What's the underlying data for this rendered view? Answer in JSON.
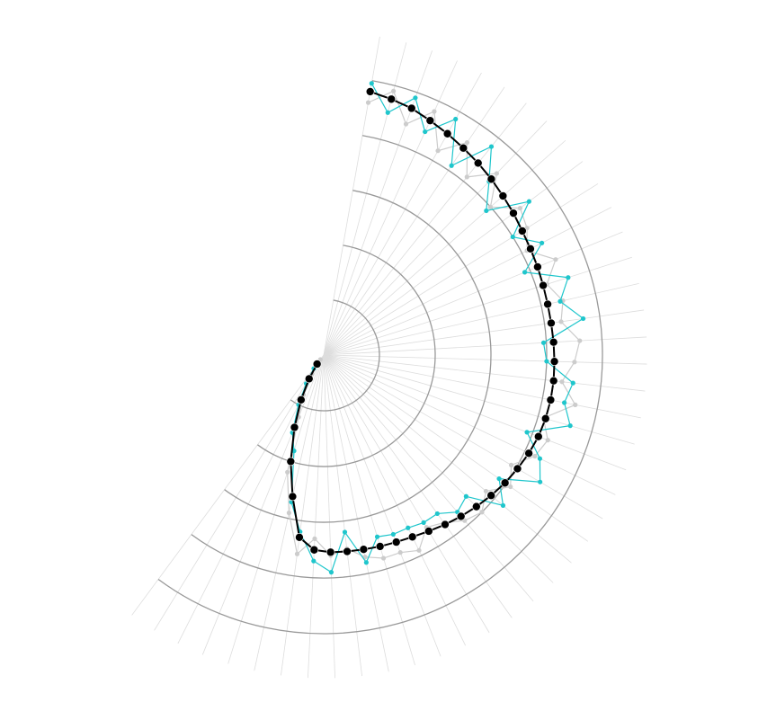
{
  "chart_data": {
    "type": "polar-line",
    "x": [
      10,
      14.8,
      19.6,
      24.4,
      29.2,
      34,
      38.8,
      43.6,
      48.4,
      53.2,
      58,
      62.8,
      67.6,
      72.4,
      77.2,
      82,
      86.8,
      91.6,
      96.4,
      101.2,
      106,
      110.8,
      115.6,
      120.4,
      125.2,
      130,
      134.8,
      139.6,
      144.4,
      149.2,
      154,
      158.8,
      163.6,
      168.4,
      173.2,
      178,
      182.8,
      187.6,
      192.4,
      197.2,
      202,
      206.8,
      211.6,
      216.4
    ],
    "rlim": [
      0,
      5
    ],
    "rticks": [
      1,
      2,
      3,
      4,
      5
    ],
    "grid": true,
    "series": [
      {
        "color": "#cccccc",
        "values": [
          4.6,
          4.9,
          4.4,
          4.8,
          4.2,
          4.6,
          4.1,
          4.5,
          4.0,
          4.4,
          4.3,
          4.1,
          4.5,
          4.2,
          4.4,
          4.3,
          4.6,
          4.5,
          4.3,
          4.6,
          4.1,
          4.3,
          4.2,
          3.9,
          4.1,
          3.8,
          4.0,
          3.9,
          3.7,
          3.6,
          3.9,
          3.8,
          3.8,
          3.7,
          3.5,
          3.6,
          3.3,
          3.6,
          2.9,
          2.2,
          1.2,
          0.8,
          0.4,
          0.1
        ]
      },
      {
        "color": "#1fc6cc",
        "values": [
          4.95,
          4.5,
          4.9,
          4.4,
          4.85,
          4.1,
          4.8,
          4.3,
          3.9,
          4.6,
          4.0,
          4.4,
          3.9,
          4.6,
          4.35,
          4.7,
          3.95,
          4.0,
          4.5,
          4.4,
          4.6,
          3.9,
          4.3,
          4.5,
          3.85,
          4.2,
          3.6,
          3.7,
          3.5,
          3.5,
          3.45,
          3.45,
          3.4,
          3.8,
          3.2,
          3.9,
          3.7,
          3.2,
          2.7,
          1.8,
          1.5,
          1.0,
          0.6,
          0.3
        ]
      },
      {
        "color": "#000000",
        "values": [
          4.8,
          4.75,
          4.7,
          4.62,
          4.55,
          4.48,
          4.42,
          4.36,
          4.3,
          4.25,
          4.2,
          4.17,
          4.15,
          4.13,
          4.12,
          4.12,
          4.13,
          4.14,
          4.15,
          4.15,
          4.14,
          4.12,
          4.08,
          4.03,
          3.98,
          3.92,
          3.86,
          3.8,
          3.74,
          3.68,
          3.63,
          3.6,
          3.58,
          3.56,
          3.55,
          3.54,
          3.5,
          3.3,
          2.6,
          2.0,
          1.4,
          0.9,
          0.5,
          0.2
        ]
      }
    ]
  }
}
